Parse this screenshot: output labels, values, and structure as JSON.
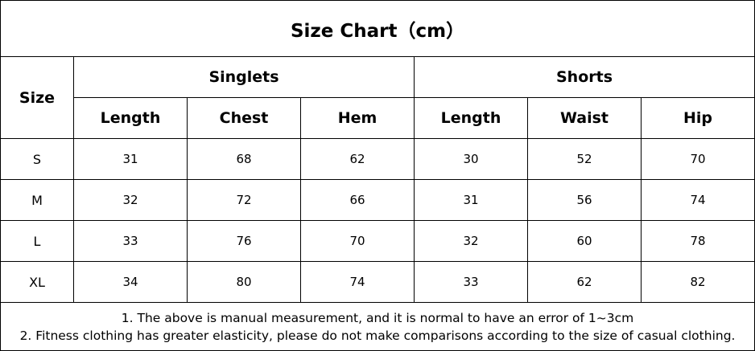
{
  "title": "Size Chart（cm）",
  "table": {
    "size_header": "Size",
    "groups": [
      "Singlets",
      "Shorts"
    ],
    "columns": [
      "Length",
      "Chest",
      "Hem",
      "Length",
      "Waist",
      "Hip"
    ],
    "rows": [
      [
        "S",
        31,
        68,
        62,
        30,
        52,
        70
      ],
      [
        "M",
        32,
        72,
        66,
        31,
        56,
        74
      ],
      [
        "L",
        33,
        76,
        70,
        32,
        60,
        78
      ],
      [
        "XL",
        34,
        80,
        74,
        33,
        62,
        82
      ]
    ]
  },
  "notes": [
    "1. The above is manual measurement, and it is normal to have an error of 1~3cm",
    "2. Fitness clothing has greater elasticity, please do not make comparisons according to the size of casual clothing."
  ]
}
